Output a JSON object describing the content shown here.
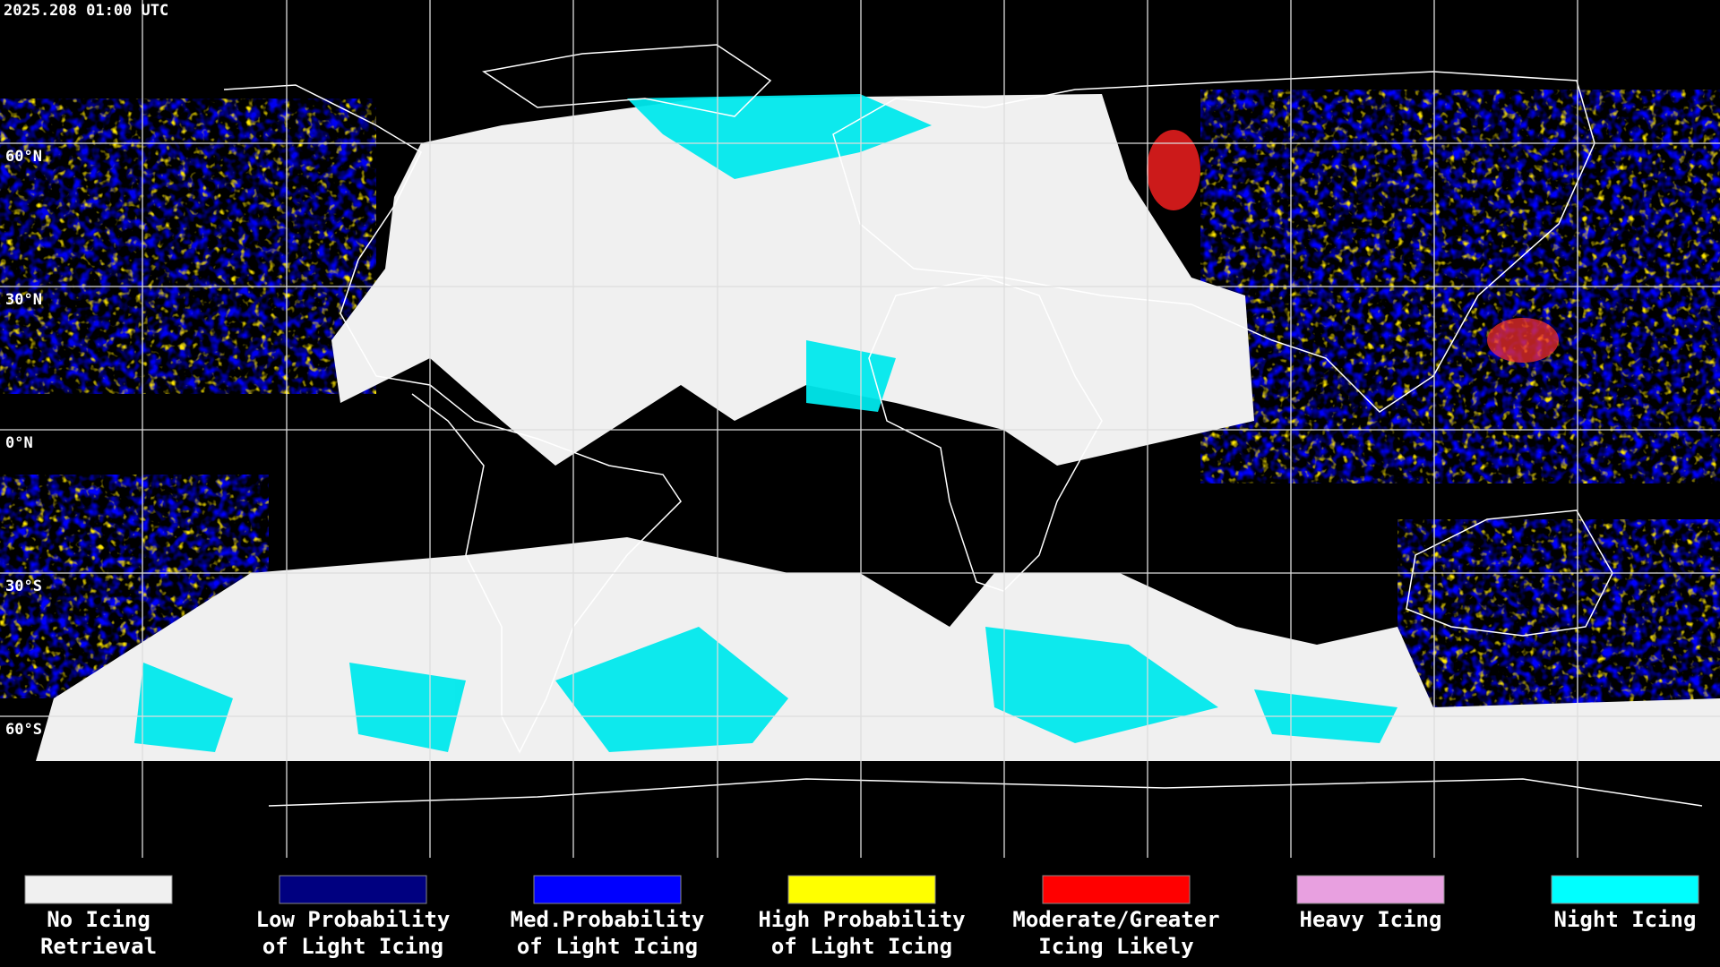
{
  "timestamp": "2025.208 01:00 UTC",
  "latitudes": [
    "60°N",
    "30°N",
    "0°N",
    "30°S",
    "60°S"
  ],
  "legend": [
    {
      "color": "#f0f0f0",
      "lines": [
        "No Icing",
        "Retrieval"
      ]
    },
    {
      "color": "#000080",
      "lines": [
        "Low Probability",
        "of Light Icing"
      ]
    },
    {
      "color": "#0000ff",
      "lines": [
        "Med.Probability",
        "of Light Icing"
      ]
    },
    {
      "color": "#ffff00",
      "lines": [
        "High Probability",
        "of Light Icing"
      ]
    },
    {
      "color": "#ff0000",
      "lines": [
        "Moderate/Greater",
        "Icing Likely"
      ]
    },
    {
      "color": "#e8a0e0",
      "lines": [
        "Heavy Icing"
      ]
    },
    {
      "color": "#00ffff",
      "lines": [
        "Night Icing"
      ]
    }
  ]
}
